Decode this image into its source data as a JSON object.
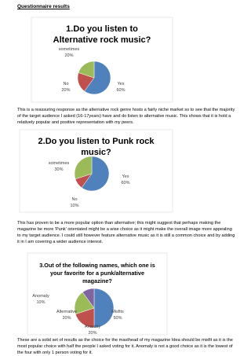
{
  "heading": "Questionnaire results",
  "sections": [
    {
      "chart": {
        "type": "pie",
        "title_lines": [
          "1.Do you listen to",
          "Alternative rock music?"
        ],
        "categories": [
          "Yes",
          "No",
          "sometimes"
        ],
        "values": [
          60,
          20,
          20
        ],
        "value_labels": [
          "60%",
          "20%",
          "20%"
        ],
        "colors": [
          "#4f81bd",
          "#c0504d",
          "#9bbb59"
        ]
      },
      "paragraph": "This is a reassuring response as the alternative rock genre hosts a fairly niche market so to see that the majority of the target audience I asked (16-17years) have and do listen to alternative music. This shows that it is hold a relatively popular and positive representation with my peers."
    },
    {
      "chart": {
        "type": "pie",
        "title_lines": [
          "2.Do you listen to Punk rock",
          "music?"
        ],
        "categories": [
          "Yes",
          "No",
          "sometimes"
        ],
        "values": [
          60,
          10,
          30
        ],
        "value_labels": [
          "60%",
          "10%",
          "30%"
        ],
        "colors": [
          "#4f81bd",
          "#c0504d",
          "#9bbb59"
        ]
      },
      "paragraph": "This has proven to be a more popular option than alternative; this might suggest that perhaps making the magazine be more 'Punk' orientated might be a wise choice as it might make the overall image more appealing to my target audience. I could still however feature alternative music as it is still a common choice and by adding it in I am covering a wider audience interest."
    },
    {
      "chart": {
        "type": "pie",
        "title_lines": [
          "3.Out of the following names, which one is",
          "your favorite for a punk/alternative",
          "magazine?"
        ],
        "categories": [
          "Misfits",
          "Anarchy",
          "Alternative",
          "Anomaly"
        ],
        "values": [
          50,
          20,
          20,
          10
        ],
        "value_labels": [
          "50%",
          "20%",
          "20%",
          "10%"
        ],
        "colors": [
          "#4f81bd",
          "#c0504d",
          "#9bbb59",
          "#8064a2"
        ]
      },
      "paragraph": "These are a solid set of results as the choice for the masthead of my magazine Idea should be misfit as it is the most popular choice with half the people I asked voting for it. Anomaly is not a good choice as it is the lowest of the four with only 1 person voting for it."
    }
  ]
}
